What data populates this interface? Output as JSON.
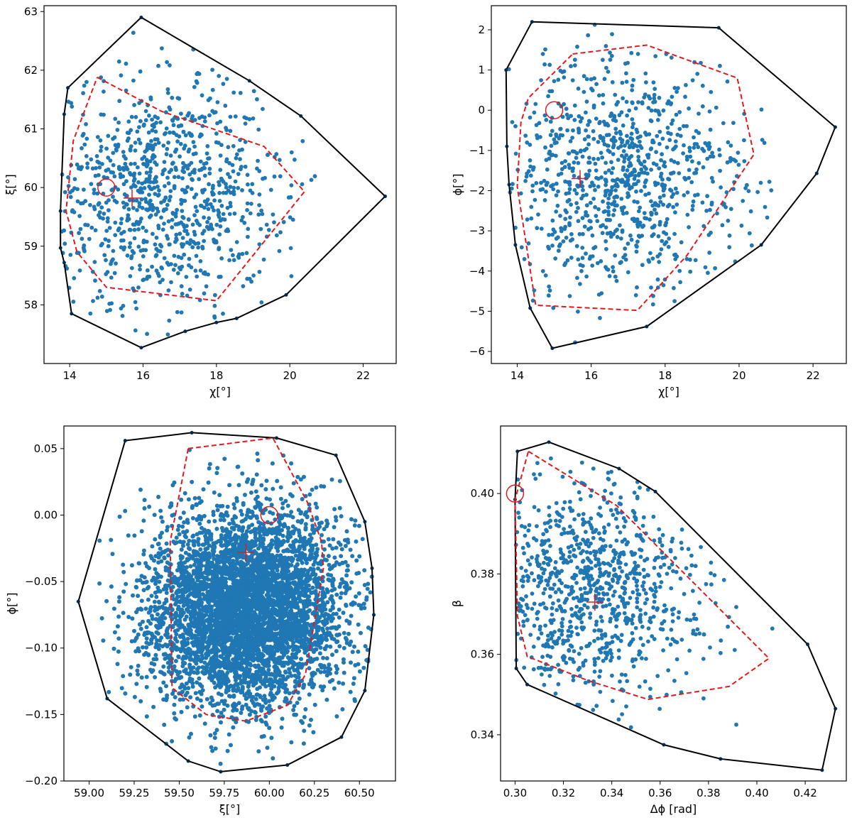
{
  "figure": {
    "colors": {
      "points": "#1f77b4",
      "outer_hull": "#000000",
      "inner_hull": "#e41a1c",
      "markers": "#e41a1c"
    }
  },
  "chart_data": [
    {
      "type": "scatter",
      "panel": "top-left",
      "xlabel": "χ[°]",
      "ylabel": "ξ[°]",
      "xlim": [
        13.3,
        22.9
      ],
      "ylim": [
        57.0,
        63.1
      ],
      "xticks": [
        14,
        16,
        18,
        20,
        22
      ],
      "yticks": [
        58,
        59,
        60,
        61,
        62,
        63
      ],
      "tick_labels_x": [
        "14",
        "16",
        "18",
        "20",
        "22"
      ],
      "tick_labels_y": [
        "58",
        "59",
        "60",
        "61",
        "62",
        "63"
      ],
      "n_points": 900,
      "cloud_center": [
        16.6,
        59.9
      ],
      "cloud_spread": [
        1.6,
        1.0
      ],
      "outer_hull": [
        [
          15.95,
          62.9
        ],
        [
          18.9,
          61.82
        ],
        [
          20.3,
          61.22
        ],
        [
          22.6,
          59.85
        ],
        [
          19.9,
          58.17
        ],
        [
          18.55,
          57.77
        ],
        [
          18.0,
          57.7
        ],
        [
          17.15,
          57.55
        ],
        [
          15.95,
          57.27
        ],
        [
          14.05,
          57.85
        ],
        [
          13.85,
          58.72
        ],
        [
          13.75,
          58.97
        ],
        [
          13.75,
          59.6
        ],
        [
          13.85,
          61.25
        ],
        [
          13.95,
          61.7
        ],
        [
          15.95,
          62.9
        ]
      ],
      "inner_hull": [
        [
          14.75,
          61.88
        ],
        [
          16.5,
          61.3
        ],
        [
          19.3,
          60.7
        ],
        [
          20.4,
          59.93
        ],
        [
          18.0,
          58.07
        ],
        [
          15.0,
          58.3
        ],
        [
          14.2,
          58.9
        ],
        [
          13.9,
          59.6
        ],
        [
          14.1,
          60.8
        ],
        [
          14.75,
          61.88
        ]
      ],
      "truth_marker": [
        15.0,
        60.0
      ],
      "mean_marker": [
        15.7,
        59.82
      ]
    },
    {
      "type": "scatter",
      "panel": "top-right",
      "xlabel": "χ[°]",
      "ylabel": "ϕ[°]",
      "xlim": [
        13.3,
        22.9
      ],
      "ylim": [
        -6.3,
        2.6
      ],
      "xticks": [
        14,
        16,
        18,
        20,
        22
      ],
      "yticks": [
        -6,
        -5,
        -4,
        -3,
        -2,
        -1,
        0,
        1,
        2
      ],
      "tick_labels_x": [
        "14",
        "16",
        "18",
        "20",
        "22"
      ],
      "tick_labels_y": [
        "−6",
        "−5",
        "−4",
        "−3",
        "−2",
        "−1",
        "0",
        "1",
        "2"
      ],
      "n_points": 900,
      "cloud_center": [
        16.8,
        -1.7
      ],
      "cloud_spread": [
        1.6,
        1.45
      ],
      "outer_hull": [
        [
          14.4,
          2.2
        ],
        [
          19.45,
          2.05
        ],
        [
          22.6,
          -0.42
        ],
        [
          22.1,
          -1.57
        ],
        [
          20.6,
          -3.35
        ],
        [
          17.5,
          -5.38
        ],
        [
          14.95,
          -5.92
        ],
        [
          14.35,
          -4.92
        ],
        [
          13.95,
          -3.35
        ],
        [
          13.78,
          -1.85
        ],
        [
          13.72,
          -0.9
        ],
        [
          13.7,
          1.0
        ],
        [
          14.4,
          2.2
        ]
      ],
      "inner_hull": [
        [
          15.5,
          1.4
        ],
        [
          17.5,
          1.62
        ],
        [
          19.95,
          0.8
        ],
        [
          20.4,
          -1.1
        ],
        [
          18.6,
          -3.6
        ],
        [
          17.25,
          -4.98
        ],
        [
          14.5,
          -4.85
        ],
        [
          14.0,
          -1.9
        ],
        [
          14.1,
          -0.3
        ],
        [
          14.3,
          0.3
        ],
        [
          15.5,
          1.4
        ]
      ],
      "truth_marker": [
        15.0,
        0.0
      ],
      "mean_marker": [
        15.7,
        -1.7
      ]
    },
    {
      "type": "scatter",
      "panel": "bottom-left",
      "xlabel": "ξ[°]",
      "ylabel": "ϕ[°]",
      "xlim": [
        58.86,
        60.7
      ],
      "ylim": [
        -0.2,
        0.067
      ],
      "xticks": [
        59.0,
        59.25,
        59.5,
        59.75,
        60.0,
        60.25,
        60.5
      ],
      "yticks": [
        -0.2,
        -0.15,
        -0.1,
        -0.05,
        0.0,
        0.05
      ],
      "tick_labels_x": [
        "59.00",
        "59.25",
        "59.50",
        "59.75",
        "60.00",
        "60.25",
        "60.50"
      ],
      "tick_labels_y": [
        "−0.20",
        "−0.15",
        "−0.10",
        "−0.05",
        "0.00",
        "0.05"
      ],
      "n_points": 5000,
      "cloud_center": [
        59.87,
        -0.07
      ],
      "cloud_spread": [
        0.27,
        0.037
      ],
      "outer_hull": [
        [
          59.2,
          0.056
        ],
        [
          59.57,
          0.062
        ],
        [
          60.04,
          0.058
        ],
        [
          60.37,
          0.045
        ],
        [
          60.53,
          -0.005
        ],
        [
          60.57,
          -0.04
        ],
        [
          60.58,
          -0.075
        ],
        [
          60.53,
          -0.132
        ],
        [
          60.4,
          -0.167
        ],
        [
          60.1,
          -0.188
        ],
        [
          59.73,
          -0.193
        ],
        [
          59.55,
          -0.185
        ],
        [
          59.1,
          -0.138
        ],
        [
          58.94,
          -0.065
        ],
        [
          59.2,
          0.056
        ]
      ],
      "inner_hull": [
        [
          59.55,
          0.05
        ],
        [
          60.02,
          0.058
        ],
        [
          60.21,
          0.01
        ],
        [
          60.29,
          -0.02
        ],
        [
          60.3,
          -0.04
        ],
        [
          60.2,
          -0.12
        ],
        [
          60.1,
          -0.143
        ],
        [
          59.87,
          -0.155
        ],
        [
          59.65,
          -0.15
        ],
        [
          59.46,
          -0.13
        ],
        [
          59.45,
          -0.02
        ],
        [
          59.55,
          0.05
        ]
      ],
      "truth_marker": [
        60.0,
        0.0
      ],
      "mean_marker": [
        59.87,
        -0.028
      ]
    },
    {
      "type": "scatter",
      "panel": "bottom-right",
      "xlabel": "Δϕ [rad]",
      "ylabel": "β",
      "xlim": [
        0.294,
        0.437
      ],
      "ylim": [
        0.3285,
        0.4168
      ],
      "xticks": [
        0.3,
        0.32,
        0.34,
        0.36,
        0.38,
        0.4,
        0.42
      ],
      "yticks": [
        0.34,
        0.36,
        0.38,
        0.4
      ],
      "tick_labels_x": [
        "0.30",
        "0.32",
        "0.34",
        "0.36",
        "0.38",
        "0.40",
        "0.42"
      ],
      "tick_labels_y": [
        "0.34",
        "0.36",
        "0.38",
        "0.40"
      ],
      "n_points": 900,
      "cloud_center": [
        0.33,
        0.376
      ],
      "cloud_spread": [
        0.025,
        0.014
      ],
      "outer_hull": [
        [
          0.301,
          0.4105
        ],
        [
          0.314,
          0.4128
        ],
        [
          0.343,
          0.4062
        ],
        [
          0.358,
          0.4005
        ],
        [
          0.421,
          0.3625
        ],
        [
          0.4325,
          0.3465
        ],
        [
          0.427,
          0.3312
        ],
        [
          0.385,
          0.334
        ],
        [
          0.3615,
          0.3375
        ],
        [
          0.305,
          0.3525
        ],
        [
          0.3005,
          0.3565
        ],
        [
          0.3,
          0.3985
        ],
        [
          0.301,
          0.4105
        ]
      ],
      "inner_hull": [
        [
          0.3055,
          0.4105
        ],
        [
          0.342,
          0.397
        ],
        [
          0.405,
          0.359
        ],
        [
          0.3885,
          0.352
        ],
        [
          0.355,
          0.3488
        ],
        [
          0.33,
          0.3535
        ],
        [
          0.305,
          0.3595
        ],
        [
          0.301,
          0.3695
        ],
        [
          0.3,
          0.3985
        ],
        [
          0.3055,
          0.4105
        ]
      ],
      "truth_marker": [
        0.3,
        0.4
      ],
      "mean_marker": [
        0.333,
        0.373
      ]
    }
  ]
}
